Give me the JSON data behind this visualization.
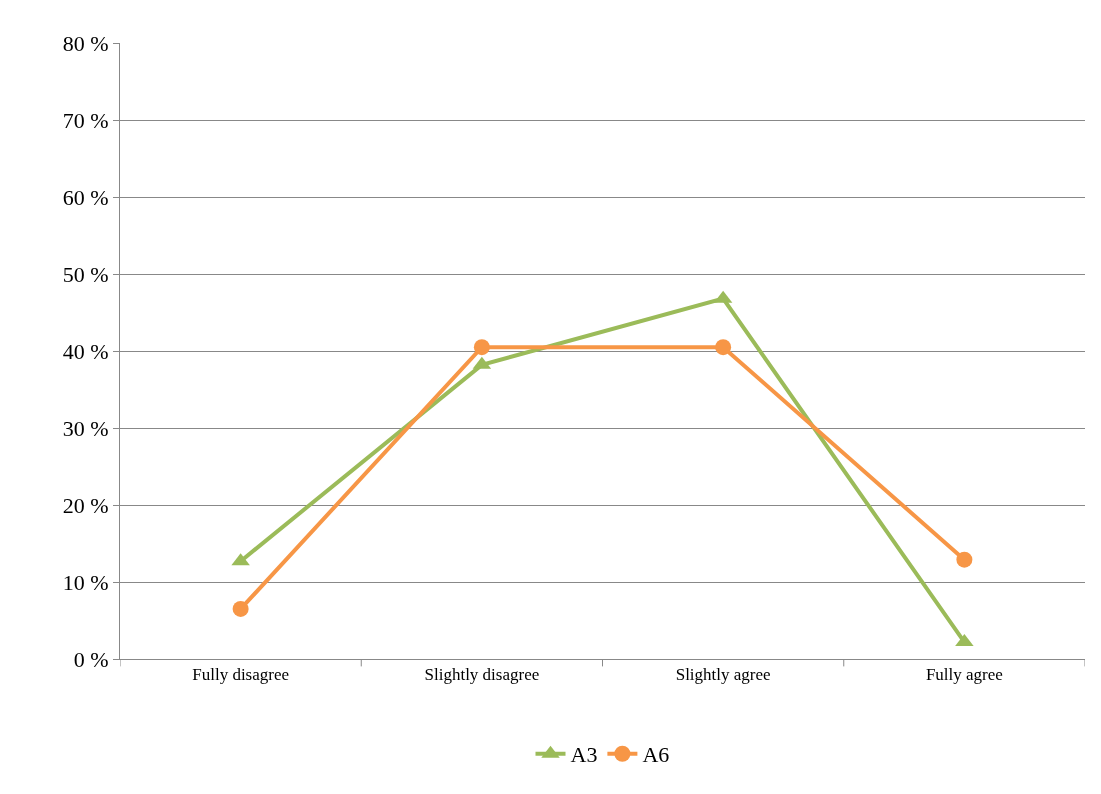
{
  "chart_data": {
    "type": "line",
    "categories": [
      "Fully disagree",
      "Slightly disagree",
      "Slightly agree",
      "Fully agree"
    ],
    "series": [
      {
        "name": "A3",
        "color": "#9bbb59",
        "marker": "triangle",
        "values": [
          12.7,
          38.2,
          46.8,
          2.2
        ]
      },
      {
        "name": "A6",
        "color": "#f79646",
        "marker": "circle",
        "values": [
          6.5,
          40.5,
          40.5,
          12.9
        ]
      }
    ],
    "ylim": [
      0,
      80
    ],
    "yticks": [
      {
        "value": 0,
        "label": "0 %"
      },
      {
        "value": 10,
        "label": "10 %"
      },
      {
        "value": 20,
        "label": "20 %"
      },
      {
        "value": 30,
        "label": "30 %"
      },
      {
        "value": 40,
        "label": "40 %"
      },
      {
        "value": 50,
        "label": "50 %"
      },
      {
        "value": 60,
        "label": "60 %"
      },
      {
        "value": 70,
        "label": "70 %"
      },
      {
        "value": 80,
        "label": "80 %"
      }
    ],
    "grid": "y",
    "legend": "bottom"
  }
}
